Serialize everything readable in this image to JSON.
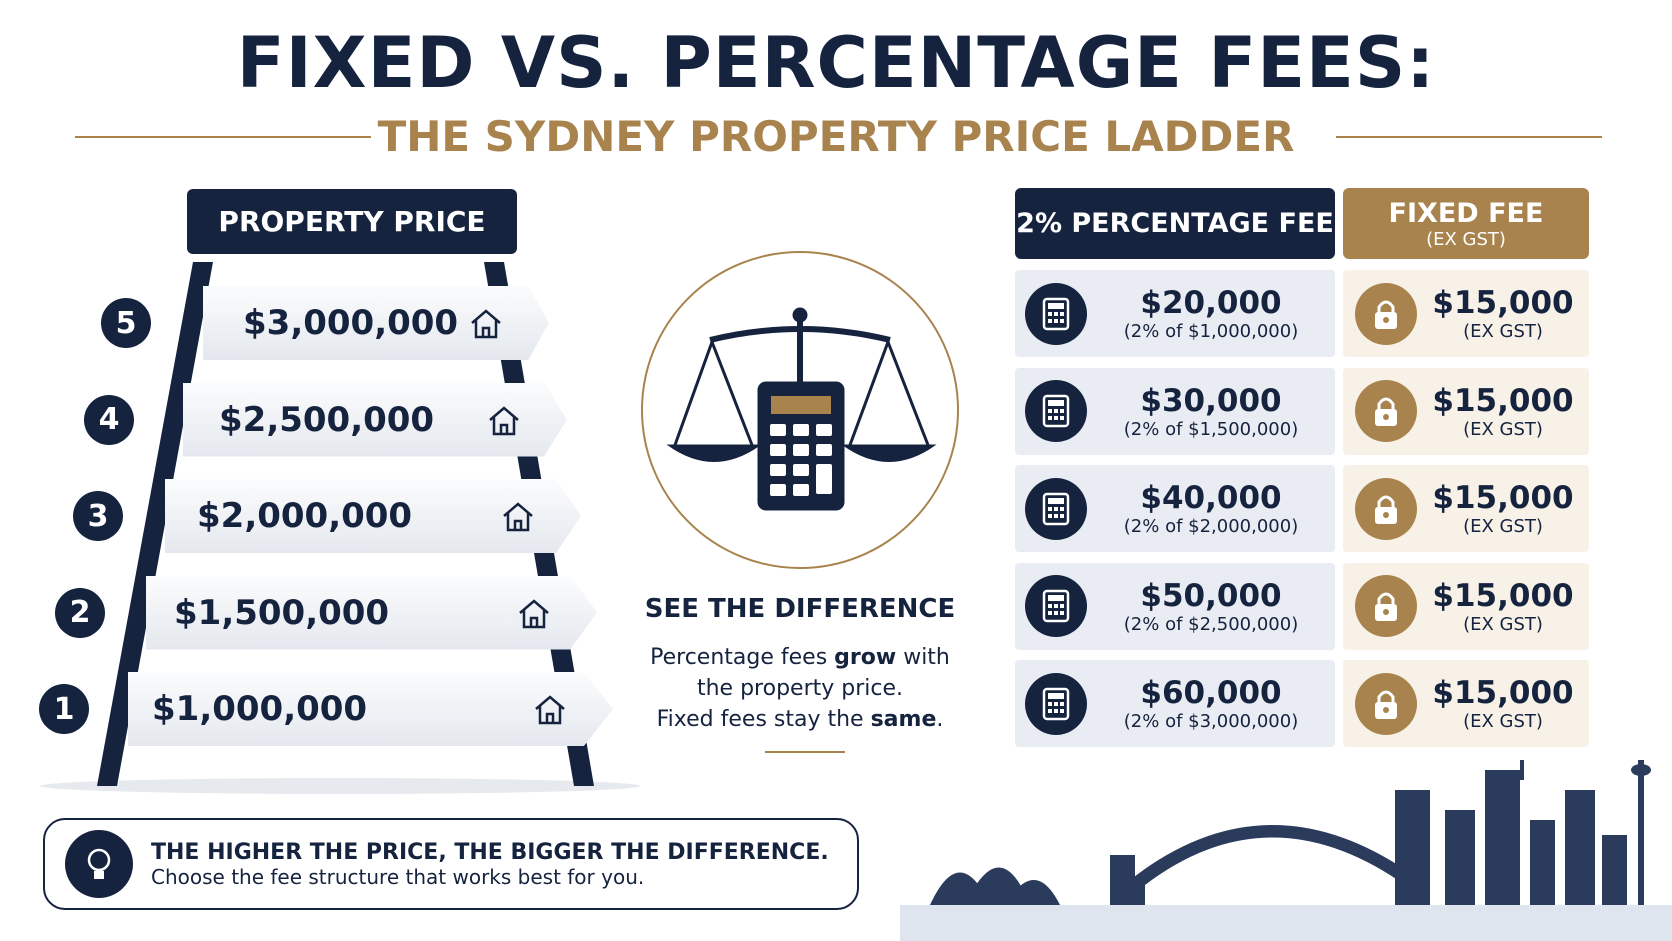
{
  "header": {
    "title": "FIXED VS. PERCENTAGE FEES:",
    "subtitle": "THE SYDNEY PROPERTY PRICE LADDER"
  },
  "ladder": {
    "heading": "PROPERTY PRICE",
    "steps": [
      {
        "number": "5",
        "price": "$3,000,000"
      },
      {
        "number": "4",
        "price": "$2,500,000"
      },
      {
        "number": "3",
        "price": "$2,000,000"
      },
      {
        "number": "2",
        "price": "$1,500,000"
      },
      {
        "number": "1",
        "price": "$1,000,000"
      }
    ]
  },
  "center": {
    "heading": "SEE THE DIFFERENCE",
    "lines": [
      [
        {
          "text": "Percentage fees ",
          "bold": false
        },
        {
          "text": "grow",
          "bold": true
        },
        {
          "text": " with",
          "bold": false
        }
      ],
      [
        {
          "text": "the property price.",
          "bold": false
        }
      ],
      [
        {
          "text": "Fixed fees stay the ",
          "bold": false
        },
        {
          "text": "same",
          "bold": true
        },
        {
          "text": ".",
          "bold": false
        }
      ]
    ]
  },
  "table": {
    "percentage_header": "2% PERCENTAGE FEE",
    "fixed_header": "FIXED FEE",
    "fixed_header_note": "(EX GST)",
    "rows": [
      {
        "percentage_fee": "$20,000",
        "percentage_note": "(2% of $1,000,000)",
        "fixed_fee": "$15,000",
        "fixed_note": "(EX GST)"
      },
      {
        "percentage_fee": "$30,000",
        "percentage_note": "(2% of $1,500,000)",
        "fixed_fee": "$15,000",
        "fixed_note": "(EX GST)"
      },
      {
        "percentage_fee": "$40,000",
        "percentage_note": "(2% of $2,000,000)",
        "fixed_fee": "$15,000",
        "fixed_note": "(EX GST)"
      },
      {
        "percentage_fee": "$50,000",
        "percentage_note": "(2% of $2,500,000)",
        "fixed_fee": "$15,000",
        "fixed_note": "(EX GST)"
      },
      {
        "percentage_fee": "$60,000",
        "percentage_note": "(2% of $3,000,000)",
        "fixed_fee": "$15,000",
        "fixed_note": "(EX GST)"
      }
    ]
  },
  "footer": {
    "headline": "THE HIGHER THE PRICE, THE BIGGER THE DIFFERENCE.",
    "text": "Choose the fee structure that works best for you."
  }
}
